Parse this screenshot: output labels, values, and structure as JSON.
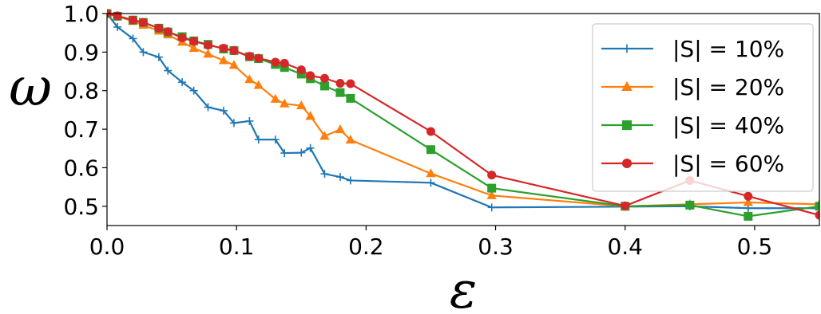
{
  "chart_data": {
    "type": "line",
    "xlabel": "ε",
    "ylabel": "ω",
    "xlim": [
      0.0,
      0.55
    ],
    "ylim": [
      0.45,
      1.0
    ],
    "grid": false,
    "legend_position": "top-right",
    "x_ticks": [
      {
        "value": 0.0,
        "label": "0.0"
      },
      {
        "value": 0.1,
        "label": "0.1"
      },
      {
        "value": 0.2,
        "label": "0.2"
      },
      {
        "value": 0.3,
        "label": "0.3"
      },
      {
        "value": 0.4,
        "label": "0.4"
      },
      {
        "value": 0.5,
        "label": "0.5"
      }
    ],
    "y_ticks": [
      {
        "value": 0.5,
        "label": "0.5"
      },
      {
        "value": 0.6,
        "label": "0.6"
      },
      {
        "value": 0.7,
        "label": "0.7"
      },
      {
        "value": 0.8,
        "label": "0.8"
      },
      {
        "value": 0.9,
        "label": "0.9"
      },
      {
        "value": 1.0,
        "label": "1.0"
      }
    ],
    "series": [
      {
        "name": "|S| = 10%",
        "color": "#1f77b4",
        "marker": "plus",
        "x": [
          0.0,
          0.008,
          0.02,
          0.028,
          0.04,
          0.047,
          0.058,
          0.067,
          0.078,
          0.09,
          0.098,
          0.11,
          0.117,
          0.13,
          0.137,
          0.15,
          0.157,
          0.168,
          0.18,
          0.188,
          0.25,
          0.297,
          0.4,
          0.45,
          0.495,
          0.55
        ],
        "y": [
          1.0,
          0.965,
          0.935,
          0.9,
          0.887,
          0.852,
          0.822,
          0.8,
          0.757,
          0.748,
          0.716,
          0.721,
          0.673,
          0.673,
          0.638,
          0.639,
          0.651,
          0.584,
          0.576,
          0.567,
          0.561,
          0.497,
          0.499,
          0.5,
          0.495,
          0.495
        ]
      },
      {
        "name": "|S| = 20%",
        "color": "#ff7f0e",
        "marker": "triangle",
        "x": [
          0.0,
          0.008,
          0.02,
          0.028,
          0.04,
          0.047,
          0.058,
          0.067,
          0.078,
          0.09,
          0.098,
          0.11,
          0.117,
          0.13,
          0.137,
          0.15,
          0.157,
          0.168,
          0.18,
          0.188,
          0.25,
          0.297,
          0.4,
          0.45,
          0.495,
          0.55
        ],
        "y": [
          1.0,
          0.993,
          0.98,
          0.97,
          0.955,
          0.945,
          0.926,
          0.91,
          0.895,
          0.878,
          0.866,
          0.829,
          0.814,
          0.778,
          0.766,
          0.761,
          0.734,
          0.682,
          0.699,
          0.672,
          0.585,
          0.528,
          0.5,
          0.505,
          0.51,
          0.505
        ]
      },
      {
        "name": "|S| = 40%",
        "color": "#2ca02c",
        "marker": "square",
        "x": [
          0.0,
          0.008,
          0.02,
          0.028,
          0.04,
          0.047,
          0.058,
          0.067,
          0.078,
          0.09,
          0.098,
          0.11,
          0.117,
          0.13,
          0.137,
          0.15,
          0.157,
          0.168,
          0.18,
          0.188,
          0.25,
          0.297,
          0.4,
          0.45,
          0.495,
          0.55
        ],
        "y": [
          1.0,
          0.993,
          0.983,
          0.977,
          0.962,
          0.952,
          0.94,
          0.929,
          0.92,
          0.908,
          0.904,
          0.888,
          0.883,
          0.868,
          0.86,
          0.843,
          0.831,
          0.812,
          0.795,
          0.78,
          0.647,
          0.547,
          0.5,
          0.503,
          0.474,
          0.5
        ]
      },
      {
        "name": "|S| = 60%",
        "color": "#d62728",
        "marker": "circle",
        "x": [
          0.0,
          0.008,
          0.02,
          0.028,
          0.04,
          0.047,
          0.058,
          0.067,
          0.078,
          0.09,
          0.098,
          0.11,
          0.117,
          0.13,
          0.137,
          0.15,
          0.157,
          0.168,
          0.18,
          0.188,
          0.25,
          0.297,
          0.4,
          0.45,
          0.495,
          0.55
        ],
        "y": [
          1.0,
          0.994,
          0.983,
          0.977,
          0.962,
          0.953,
          0.937,
          0.928,
          0.918,
          0.91,
          0.904,
          0.889,
          0.884,
          0.874,
          0.871,
          0.854,
          0.839,
          0.832,
          0.819,
          0.818,
          0.694,
          0.581,
          0.501,
          0.567,
          0.526,
          0.477
        ]
      }
    ]
  }
}
